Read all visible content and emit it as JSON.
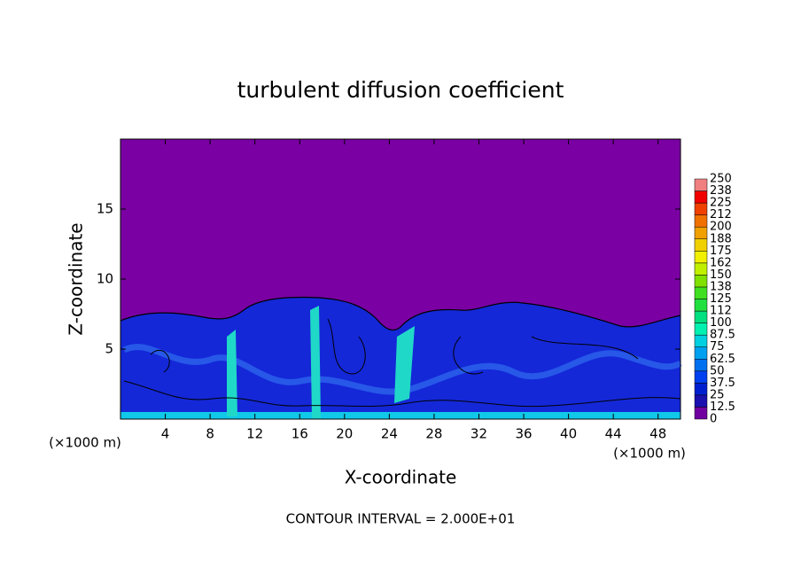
{
  "chart_data": {
    "type": "contour",
    "title": "turbulent diffusion coefficient",
    "x_label": "X-coordinate",
    "y_label": "Z-coordinate",
    "x_unit": "(×1000 m)",
    "x_unit_right": "(×1000 m)",
    "footer": "CONTOUR INTERVAL = 2.000E+01",
    "xlim": [
      0,
      50
    ],
    "xticks": [
      4,
      8,
      12,
      16,
      20,
      24,
      28,
      32,
      36,
      40,
      44,
      48
    ],
    "ylim": [
      0,
      20
    ],
    "yticks": [
      5,
      10,
      15
    ],
    "colorbar": {
      "ticks": [
        0,
        12.5,
        25,
        37.5,
        50,
        62.5,
        75,
        87.5,
        100,
        112,
        125,
        138,
        150,
        162,
        175,
        188,
        200,
        212,
        225,
        238,
        250
      ],
      "colors": [
        "#7000a0",
        "#1a10b0",
        "#0020d0",
        "#0040f0",
        "#0070f0",
        "#00a0f0",
        "#00d0e0",
        "#00f0b0",
        "#00e080",
        "#20e040",
        "#40e020",
        "#80e000",
        "#c0f000",
        "#f0f000",
        "#f0d000",
        "#f0a000",
        "#f07000",
        "#f04000",
        "#f00000",
        "#f08080"
      ]
    }
  }
}
